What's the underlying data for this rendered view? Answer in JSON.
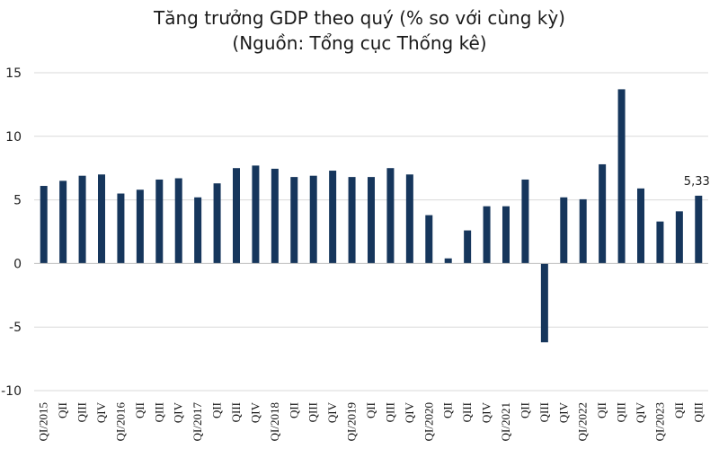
{
  "chart_data": {
    "type": "bar",
    "title": "Tăng trưởng GDP theo quý (% so với cùng kỳ)",
    "subtitle": "(Nguồn: Tổng cục Thống kê)",
    "xlabel": "",
    "ylabel": "",
    "ylim": [
      -10,
      15
    ],
    "yticks": [
      15,
      10,
      5,
      0,
      -5,
      -10
    ],
    "grid": true,
    "bar_color": "#16365c",
    "categories": [
      "QI/2015",
      "QII",
      "QIII",
      "QIV",
      "QI/2016",
      "QII",
      "QIII",
      "QIV",
      "QI/2017",
      "QII",
      "QIII",
      "QIV",
      "QI/2018",
      "QII",
      "QIII",
      "QIV",
      "QI/2019",
      "QII",
      "QIII",
      "QIV",
      "QI/2020",
      "QII",
      "QIII",
      "QIV",
      "QI/2021",
      "QII",
      "QIII",
      "QIV",
      "QI/2022",
      "QII",
      "QIII",
      "QIV",
      "QI/2023",
      "QII",
      "QIII"
    ],
    "values": [
      6.1,
      6.5,
      6.9,
      7.0,
      5.5,
      5.8,
      6.6,
      6.7,
      5.2,
      6.3,
      7.5,
      7.7,
      7.45,
      6.8,
      6.9,
      7.3,
      6.8,
      6.8,
      7.5,
      7.0,
      3.8,
      0.4,
      2.6,
      4.5,
      4.5,
      6.6,
      -6.2,
      5.2,
      5.05,
      7.8,
      13.7,
      5.9,
      3.3,
      4.1,
      5.33
    ],
    "data_labels": [
      {
        "index": 34,
        "text": "5,33"
      }
    ]
  }
}
